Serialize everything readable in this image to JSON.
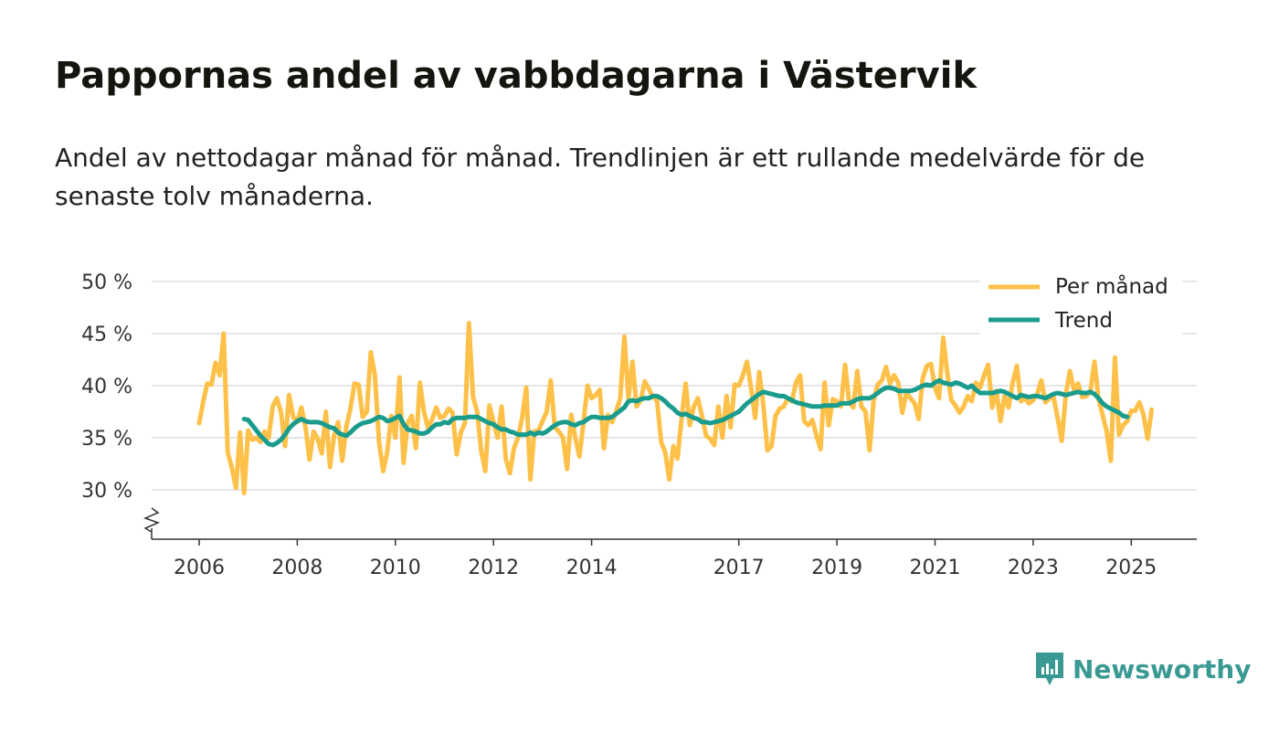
{
  "header": {
    "title": "Pappornas andel av vabbdagarna i Västervik",
    "subtitle": "Andel av nettodagar månad för månad. Trendlinjen är ett rullande medelvärde för de senaste tolv månaderna."
  },
  "brand": {
    "name": "Newsworthy",
    "color": "#3a9a93",
    "icon": "newsworthy-logo-icon"
  },
  "colors": {
    "monthly": "#fdc149",
    "trend": "#1a9c8d",
    "grid": "#dddddd",
    "axis": "#333333"
  },
  "chart_data": {
    "type": "line",
    "title": "Pappornas andel av vabbdagarna i Västervik",
    "xlabel": "",
    "ylabel": "",
    "ylim": [
      25,
      50
    ],
    "xlim": [
      2005.6,
      2026.3
    ],
    "y_ticks": [
      30,
      35,
      40,
      45,
      50
    ],
    "y_tick_labels": [
      "30 %",
      "35 %",
      "40 %",
      "45 %",
      "50 %"
    ],
    "x_ticks": [
      2006,
      2008,
      2010,
      2012,
      2014,
      2017,
      2019,
      2021,
      2023,
      2025
    ],
    "x_tick_labels": [
      "2006",
      "2008",
      "2010",
      "2012",
      "2014",
      "2017",
      "2019",
      "2021",
      "2023",
      "2025"
    ],
    "legend_position": "top-right",
    "y_axis_break": true,
    "series": [
      {
        "name": "Per månad",
        "start": 2006.0,
        "step": 0.08333,
        "values": [
          36.4,
          38.5,
          40.2,
          40.1,
          42.2,
          41.0,
          45.0,
          33.6,
          32.1,
          30.2,
          35.5,
          29.7,
          35.7,
          34.8,
          35.0,
          34.6,
          35.6,
          35.0,
          38.0,
          38.8,
          37.5,
          34.2,
          39.1,
          37.0,
          36.5,
          37.9,
          36.1,
          32.9,
          35.6,
          34.9,
          33.5,
          37.5,
          32.2,
          35.2,
          36.5,
          32.8,
          36.1,
          37.8,
          40.2,
          40.1,
          37.0,
          37.5,
          43.2,
          41.0,
          34.6,
          31.8,
          33.6,
          37.1,
          35.0,
          40.8,
          32.6,
          36.4,
          37.1,
          34.0,
          40.3,
          37.5,
          35.9,
          36.8,
          37.9,
          36.9,
          37.1,
          37.8,
          37.4,
          33.4,
          35.5,
          36.4,
          46.0,
          38.9,
          37.5,
          33.7,
          31.8,
          38.1,
          36.5,
          35.0,
          38.0,
          33.0,
          31.6,
          34.0,
          35.0,
          36.9,
          39.8,
          31.0,
          35.6,
          35.7,
          36.6,
          37.5,
          40.5,
          36.0,
          35.6,
          35.0,
          32.0,
          37.2,
          35.0,
          33.2,
          36.4,
          40.0,
          38.8,
          39.1,
          39.6,
          34.0,
          37.2,
          36.5,
          37.5,
          38.8,
          44.7,
          38.8,
          42.3,
          38.0,
          38.6,
          40.4,
          39.7,
          38.9,
          38.6,
          34.6,
          33.6,
          31.0,
          34.2,
          33.0,
          36.8,
          40.2,
          36.2,
          38.0,
          38.8,
          37.1,
          35.2,
          34.9,
          34.3,
          38.0,
          35.0,
          39.0,
          36.0,
          40.1,
          40.0,
          41.0,
          42.3,
          39.8,
          36.9,
          41.3,
          38.2,
          33.8,
          34.2,
          37.1,
          37.8,
          38.0,
          38.8,
          38.5,
          40.3,
          41.0,
          36.6,
          36.2,
          36.7,
          35.2,
          33.9,
          40.3,
          36.2,
          38.7,
          38.5,
          38.0,
          42.0,
          38.4,
          37.9,
          41.4,
          38.0,
          37.5,
          33.8,
          38.6,
          40.1,
          40.5,
          41.8,
          40.2,
          41.0,
          40.3,
          37.4,
          39.3,
          38.8,
          38.3,
          36.8,
          40.7,
          41.9,
          42.1,
          39.8,
          38.8,
          44.6,
          41.2,
          38.6,
          38.1,
          37.4,
          38.0,
          39.0,
          38.5,
          40.3,
          39.8,
          41.0,
          42.0,
          37.9,
          39.5,
          36.6,
          39.0,
          37.9,
          40.3,
          41.9,
          38.5,
          38.8,
          38.3,
          38.6,
          39.2,
          40.5,
          38.4,
          38.8,
          38.9,
          36.9,
          34.7,
          39.2,
          41.4,
          39.6,
          40.2,
          38.9,
          39.0,
          39.4,
          42.3,
          38.7,
          37.2,
          35.6,
          32.8,
          42.7,
          35.3,
          36.2,
          36.6,
          37.6,
          37.6,
          38.4,
          37.2,
          34.9,
          37.7
        ]
      },
      {
        "name": "Trend",
        "start": 2006.917,
        "step": 0.08333,
        "values": [
          36.8,
          36.7,
          36.2,
          35.7,
          35.2,
          34.8,
          34.4,
          34.3,
          34.5,
          34.8,
          35.3,
          35.9,
          36.3,
          36.6,
          36.8,
          36.6,
          36.5,
          36.5,
          36.5,
          36.4,
          36.2,
          36.0,
          35.9,
          35.5,
          35.3,
          35.2,
          35.5,
          35.9,
          36.2,
          36.4,
          36.5,
          36.6,
          36.8,
          37.0,
          36.9,
          36.6,
          36.7,
          36.9,
          37.1,
          36.3,
          35.8,
          35.7,
          35.6,
          35.4,
          35.4,
          35.6,
          36.0,
          36.3,
          36.3,
          36.5,
          36.4,
          36.8,
          36.9,
          36.9,
          36.9,
          37.0,
          37.0,
          37.0,
          36.8,
          36.6,
          36.4,
          36.3,
          36.0,
          35.8,
          35.8,
          35.6,
          35.5,
          35.3,
          35.3,
          35.3,
          35.5,
          35.3,
          35.5,
          35.4,
          35.6,
          35.9,
          36.2,
          36.4,
          36.5,
          36.5,
          36.3,
          36.2,
          36.4,
          36.5,
          36.8,
          37.0,
          37.0,
          36.9,
          36.9,
          36.9,
          37.0,
          37.3,
          37.6,
          37.9,
          38.5,
          38.6,
          38.5,
          38.7,
          38.8,
          38.8,
          39.0,
          39.0,
          38.8,
          38.5,
          38.1,
          37.8,
          37.4,
          37.2,
          37.3,
          37.1,
          36.9,
          36.8,
          36.5,
          36.5,
          36.4,
          36.5,
          36.6,
          36.7,
          36.9,
          37.1,
          37.3,
          37.5,
          37.9,
          38.3,
          38.6,
          38.9,
          39.2,
          39.4,
          39.3,
          39.2,
          39.1,
          39.0,
          39.0,
          38.8,
          38.6,
          38.4,
          38.3,
          38.2,
          38.1,
          38.0,
          38.0,
          38.0,
          38.1,
          38.1,
          38.1,
          38.1,
          38.3,
          38.3,
          38.3,
          38.5,
          38.7,
          38.8,
          38.8,
          38.8,
          39.0,
          39.3,
          39.6,
          39.8,
          39.8,
          39.7,
          39.5,
          39.5,
          39.5,
          39.5,
          39.6,
          39.8,
          40.0,
          40.1,
          40.0,
          40.3,
          40.5,
          40.3,
          40.2,
          40.1,
          40.3,
          40.2,
          40.0,
          39.8,
          40.0,
          39.6,
          39.3,
          39.3,
          39.3,
          39.3,
          39.4,
          39.5,
          39.4,
          39.2,
          39.0,
          38.8,
          39.1,
          39.0,
          38.9,
          39.0,
          39.0,
          38.9,
          38.8,
          39.0,
          39.2,
          39.3,
          39.2,
          39.1,
          39.2,
          39.3,
          39.4,
          39.3,
          39.3,
          39.4,
          39.2,
          38.8,
          38.3,
          38.0,
          37.8,
          37.6,
          37.4,
          37.1,
          37.0
        ]
      }
    ]
  }
}
